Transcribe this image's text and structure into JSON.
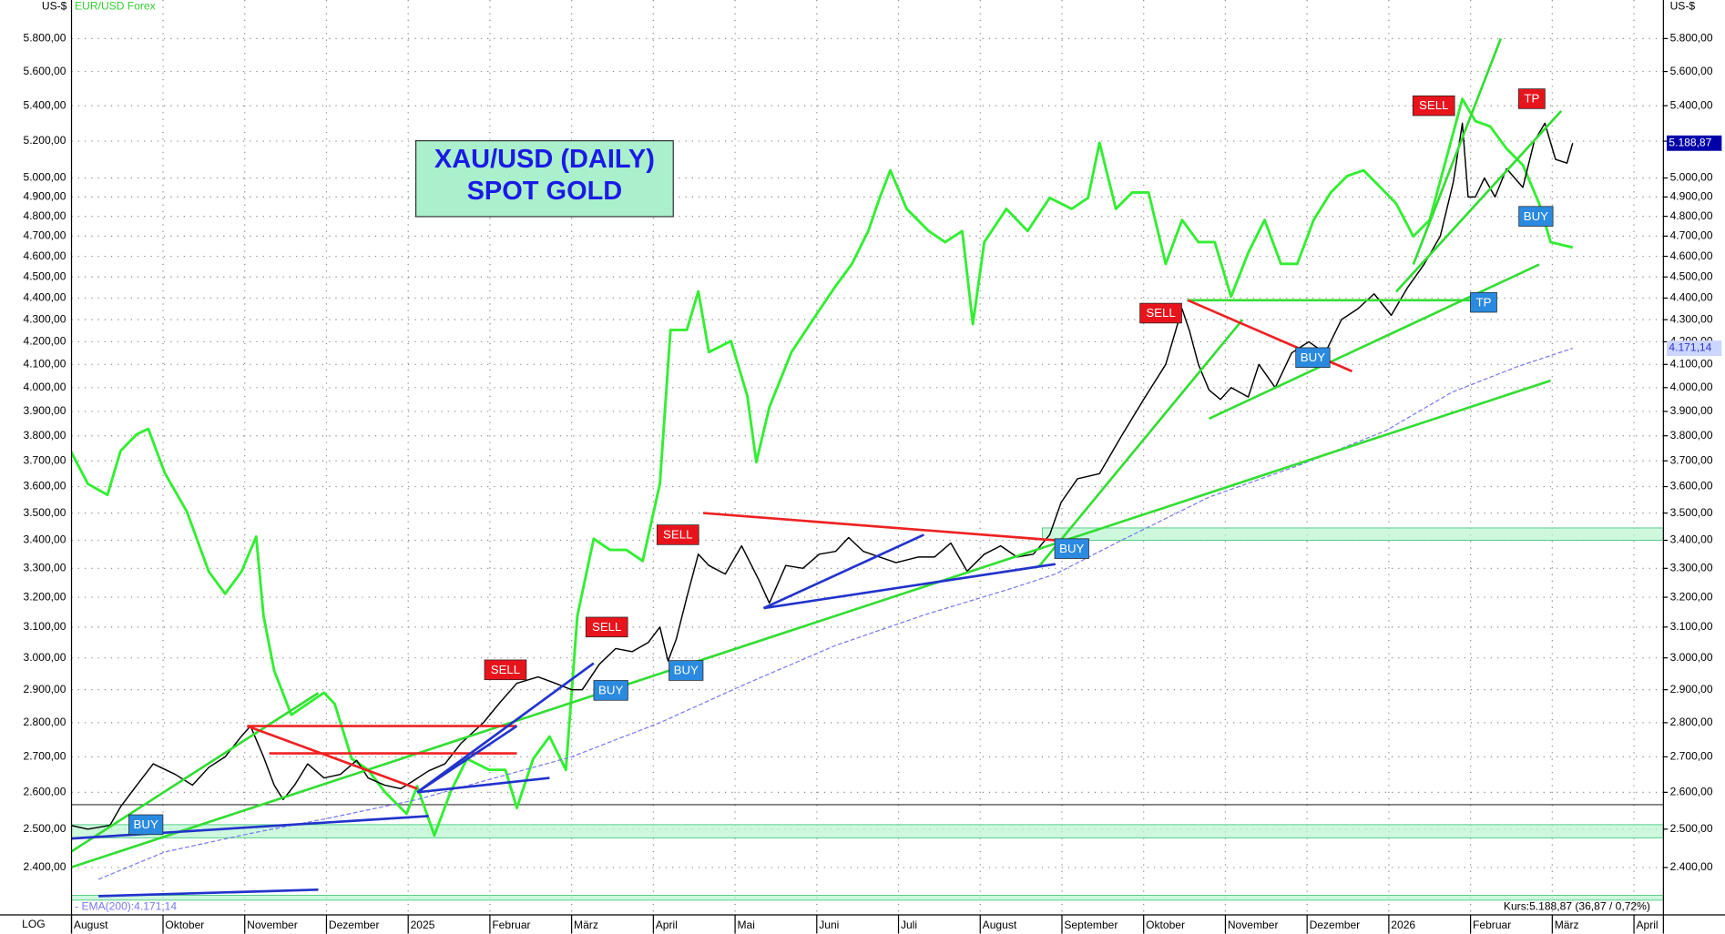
{
  "chart_data": {
    "type": "line",
    "title": "XAU/USD (DAILY)",
    "subtitle": "SPOT GOLD",
    "y_unit_left": "US-$",
    "y_unit_right": "US-$",
    "log_label": "LOG",
    "log_scale": true,
    "grid": true,
    "xlim": [
      0.88,
      20.36
    ],
    "xticks": [
      {
        "value": 0.88,
        "label": "August"
      },
      {
        "value": 2,
        "label": "Oktober"
      },
      {
        "value": 3,
        "label": "November"
      },
      {
        "value": 4,
        "label": "Dezember"
      },
      {
        "value": 5,
        "label": "2025"
      },
      {
        "value": 6,
        "label": "Februar"
      },
      {
        "value": 7,
        "label": "März"
      },
      {
        "value": 8,
        "label": "April"
      },
      {
        "value": 9,
        "label": "Mai"
      },
      {
        "value": 10,
        "label": "Juni"
      },
      {
        "value": 11,
        "label": "Juli"
      },
      {
        "value": 12,
        "label": "August"
      },
      {
        "value": 13,
        "label": "September"
      },
      {
        "value": 14,
        "label": "Oktober"
      },
      {
        "value": 15,
        "label": "November"
      },
      {
        "value": 16,
        "label": "Dezember"
      },
      {
        "value": 17,
        "label": "2026"
      },
      {
        "value": 18,
        "label": "Februar"
      },
      {
        "value": 19,
        "label": "März"
      },
      {
        "value": 20,
        "label": "April"
      }
    ],
    "ylim": [
      2282,
      6043
    ],
    "yticks": [
      {
        "value": 2400,
        "label": "2.400,00"
      },
      {
        "value": 2500,
        "label": "2.500,00"
      },
      {
        "value": 2600,
        "label": "2.600,00"
      },
      {
        "value": 2700,
        "label": "2.700,00"
      },
      {
        "value": 2800,
        "label": "2.800,00"
      },
      {
        "value": 2900,
        "label": "2.900,00"
      },
      {
        "value": 3000,
        "label": "3.000,00"
      },
      {
        "value": 3100,
        "label": "3.100,00"
      },
      {
        "value": 3200,
        "label": "3.200,00"
      },
      {
        "value": 3300,
        "label": "3.300,00"
      },
      {
        "value": 3400,
        "label": "3.400,00"
      },
      {
        "value": 3500,
        "label": "3.500,00"
      },
      {
        "value": 3600,
        "label": "3.600,00"
      },
      {
        "value": 3700,
        "label": "3.700,00"
      },
      {
        "value": 3800,
        "label": "3.800,00"
      },
      {
        "value": 3900,
        "label": "3.900,00"
      },
      {
        "value": 4000,
        "label": "4.000,00"
      },
      {
        "value": 4100,
        "label": "4.100,00"
      },
      {
        "value": 4200,
        "label": "4.200,00"
      },
      {
        "value": 4300,
        "label": "4.300,00"
      },
      {
        "value": 4400,
        "label": "4.400,00"
      },
      {
        "value": 4500,
        "label": "4.500,00"
      },
      {
        "value": 4600,
        "label": "4.600,00"
      },
      {
        "value": 4700,
        "label": "4.700,00"
      },
      {
        "value": 4800,
        "label": "4.800,00"
      },
      {
        "value": 4900,
        "label": "4.900,00"
      },
      {
        "value": 5000,
        "label": "5.000,00"
      },
      {
        "value": 5200,
        "label": "5.200,00"
      },
      {
        "value": 5400,
        "label": "5.400,00"
      },
      {
        "value": 5600,
        "label": "5.600,00"
      },
      {
        "value": 5800,
        "label": "5.800,00"
      }
    ],
    "y2lim": [
      1.0121,
      1.2184
    ],
    "series": [
      {
        "color": "#000000",
        "x": [
          0.87,
          1.08,
          1.35,
          1.48,
          1.68,
          1.88,
          2.15,
          2.36,
          2.56,
          2.76,
          2.96,
          3.07,
          3.23,
          3.36,
          3.47,
          3.61,
          3.77,
          3.97,
          4.17,
          4.37,
          4.51,
          4.71,
          4.91,
          5.05,
          5.25,
          5.45,
          5.65,
          5.92,
          6.12,
          6.33,
          6.59,
          6.8,
          7.0,
          7.13,
          7.34,
          7.54,
          7.74,
          7.94,
          8.08,
          8.18,
          8.28,
          8.41,
          8.55,
          8.68,
          8.88,
          9.08,
          9.29,
          9.42,
          9.62,
          9.83,
          10.03,
          10.23,
          10.39,
          10.57,
          10.77,
          10.97,
          11.24,
          11.44,
          11.64,
          11.84,
          12.05,
          12.25,
          12.45,
          12.65,
          12.85,
          12.99,
          13.19,
          13.46,
          13.73,
          14.0,
          14.27,
          14.47,
          14.56,
          14.67,
          14.8,
          14.94,
          15.07,
          15.28,
          15.41,
          15.61,
          15.81,
          16.02,
          16.22,
          16.42,
          16.62,
          16.82,
          17.03,
          17.23,
          17.43,
          17.63,
          17.79,
          17.9,
          17.97,
          18.06,
          18.17,
          18.3,
          18.44,
          18.64,
          18.78,
          18.91,
          19.04,
          19.18,
          19.25
        ],
        "values": [
          2510,
          2500,
          2510,
          2560,
          2620,
          2680,
          2650,
          2620,
          2670,
          2700,
          2760,
          2790,
          2700,
          2620,
          2580,
          2620,
          2680,
          2640,
          2650,
          2690,
          2640,
          2620,
          2610,
          2630,
          2660,
          2680,
          2740,
          2800,
          2860,
          2920,
          2940,
          2920,
          2900,
          2900,
          2980,
          3030,
          3020,
          3050,
          3100,
          2990,
          3060,
          3200,
          3350,
          3310,
          3280,
          3380,
          3260,
          3180,
          3310,
          3300,
          3350,
          3360,
          3410,
          3360,
          3340,
          3320,
          3340,
          3340,
          3390,
          3290,
          3350,
          3380,
          3340,
          3350,
          3420,
          3540,
          3630,
          3650,
          3800,
          3950,
          4100,
          4350,
          4250,
          4100,
          3990,
          3950,
          4000,
          3960,
          4100,
          4000,
          4150,
          4200,
          4150,
          4300,
          4350,
          4420,
          4320,
          4450,
          4560,
          4700,
          4980,
          5300,
          4900,
          4900,
          5000,
          4900,
          5050,
          4950,
          5200,
          5300,
          5100,
          5080,
          5188.87
        ]
      },
      {
        "name": "EUR/USD Forex",
        "color": "#33ee33",
        "axis": "y2",
        "x": [
          0.87,
          1.08,
          1.32,
          1.48,
          1.68,
          1.82,
          2.02,
          2.29,
          2.56,
          2.76,
          2.96,
          3.14,
          3.23,
          3.36,
          3.57,
          3.77,
          3.97,
          4.1,
          4.31,
          4.51,
          4.71,
          4.98,
          5.11,
          5.32,
          5.52,
          5.72,
          5.99,
          6.19,
          6.33,
          6.53,
          6.73,
          6.93,
          7.07,
          7.27,
          7.47,
          7.67,
          7.87,
          8.08,
          8.21,
          8.41,
          8.55,
          8.68,
          8.95,
          9.15,
          9.26,
          9.42,
          9.69,
          9.96,
          10.23,
          10.43,
          10.63,
          10.77,
          10.9,
          11.1,
          11.37,
          11.57,
          11.78,
          11.91,
          12.05,
          12.32,
          12.58,
          12.85,
          13.12,
          13.32,
          13.46,
          13.66,
          13.86,
          14.06,
          14.27,
          14.47,
          14.67,
          14.87,
          15.07,
          15.28,
          15.48,
          15.68,
          15.88,
          16.08,
          16.29,
          16.49,
          16.69,
          16.89,
          17.09,
          17.3,
          17.5,
          17.7,
          17.9,
          18.06,
          18.24,
          18.44,
          18.64,
          18.84,
          18.98,
          19.25
        ],
        "values": [
          1.1167,
          1.1093,
          1.1068,
          1.1167,
          1.1205,
          1.1217,
          1.1118,
          1.1031,
          1.0895,
          1.0845,
          1.0895,
          1.0974,
          1.0795,
          1.0672,
          1.0572,
          1.0597,
          1.0622,
          1.0597,
          1.0473,
          1.0448,
          1.0399,
          1.0349,
          1.0411,
          1.03,
          1.0399,
          1.0473,
          1.0448,
          1.0448,
          1.0362,
          1.0473,
          1.0523,
          1.0448,
          1.0795,
          1.0969,
          1.0944,
          1.0944,
          1.0919,
          1.1093,
          1.144,
          1.144,
          1.1527,
          1.139,
          1.1415,
          1.1291,
          1.1142,
          1.1266,
          1.139,
          1.1465,
          1.1539,
          1.1589,
          1.1663,
          1.1738,
          1.18,
          1.1713,
          1.1663,
          1.1638,
          1.1663,
          1.1453,
          1.1638,
          1.1713,
          1.1663,
          1.1738,
          1.1713,
          1.1738,
          1.1862,
          1.1713,
          1.175,
          1.175,
          1.1589,
          1.1688,
          1.1638,
          1.1638,
          1.1515,
          1.1614,
          1.1688,
          1.1589,
          1.1589,
          1.1688,
          1.175,
          1.1787,
          1.18,
          1.1763,
          1.1725,
          1.1651,
          1.1688,
          1.1824,
          1.1961,
          1.1911,
          1.1899,
          1.1849,
          1.1812,
          1.1725,
          1.1638,
          1.1626
        ]
      },
      {
        "name": "- EMA(200):4.171,14",
        "color": "#7777ee",
        "dashed": true,
        "x": [
          1.21,
          2.02,
          3.1,
          4.04,
          5.11,
          6.06,
          7.0,
          8.08,
          9.15,
          10.23,
          11.31,
          12.38,
          12.92,
          13.73,
          14.8,
          15.88,
          16.96,
          17.77,
          18.57,
          19.25
        ],
        "values": [
          2370,
          2440,
          2490,
          2530,
          2580,
          2640,
          2700,
          2800,
          2920,
          3040,
          3140,
          3230,
          3280,
          3400,
          3560,
          3680,
          3820,
          3980,
          4090,
          4171.14
        ]
      }
    ],
    "price_tags": [
      {
        "value": 5188.87,
        "label": "5.188,87",
        "color": "#0000aa",
        "text_color": "#ffffff"
      },
      {
        "value": 4171.14,
        "label": "4.171,14",
        "color": "#ccd6ff",
        "text_color": "#3333cc"
      }
    ],
    "quote": "Kurs:5.188,87 (36,87 / 0,72%)",
    "zones": [
      {
        "x": [
          12.76,
          20.36
        ],
        "y": [
          3400,
          3445
        ]
      },
      {
        "x": [
          0.88,
          20.36
        ],
        "y": [
          2477,
          2512
        ]
      },
      {
        "x": [
          0.88,
          20.36
        ],
        "y": [
          2318,
          2330
        ]
      }
    ],
    "hlines": [
      {
        "value": 2566,
        "color": "#333333"
      }
    ],
    "trendlines": [
      {
        "color": "#33dd33",
        "x": [
          0.87,
          18.98
        ],
        "y": [
          2400,
          4030
        ]
      },
      {
        "color": "#33dd33",
        "x": [
          0.87,
          3.9
        ],
        "y": [
          2440,
          2890
        ]
      },
      {
        "color": "#33dd33",
        "x": [
          12.72,
          15.21
        ],
        "y": [
          3307,
          4300
        ]
      },
      {
        "color": "#33dd33",
        "x": [
          14.8,
          18.84
        ],
        "y": [
          3870,
          4560
        ]
      },
      {
        "color": "#33dd33",
        "x": [
          14.53,
          18.3
        ],
        "y": [
          4390,
          4390
        ]
      },
      {
        "color": "#33dd33",
        "x": [
          17.3,
          18.37
        ],
        "y": [
          4560,
          5800
        ]
      },
      {
        "color": "#33dd33",
        "x": [
          17.09,
          19.11
        ],
        "y": [
          4430,
          5370
        ]
      },
      {
        "color": "#ee2222",
        "x": [
          8.61,
          12.92
        ],
        "y": [
          3500,
          3400
        ]
      },
      {
        "color": "#ee2222",
        "x": [
          14.54,
          16.55
        ],
        "y": [
          4390,
          4070
        ]
      },
      {
        "color": "#ee2222",
        "x": [
          3.03,
          5.11
        ],
        "y": [
          2790,
          2610
        ]
      },
      {
        "color": "#ee2222",
        "x": [
          3.03,
          6.33
        ],
        "y": [
          2790,
          2790
        ]
      },
      {
        "color": "#ee2222",
        "x": [
          3.3,
          6.33
        ],
        "y": [
          2710,
          2710
        ]
      },
      {
        "color": "#2233cc",
        "x": [
          9.35,
          11.31
        ],
        "y": [
          3163,
          3420
        ]
      },
      {
        "color": "#2233cc",
        "x": [
          9.35,
          12.92
        ],
        "y": [
          3163,
          3315
        ]
      },
      {
        "color": "#2233cc",
        "x": [
          5.11,
          7.27
        ],
        "y": [
          2600,
          2983
        ]
      },
      {
        "color": "#2233cc",
        "x": [
          5.11,
          6.73
        ],
        "y": [
          2600,
          2640
        ]
      },
      {
        "color": "#2233cc",
        "x": [
          5.11,
          6.33
        ],
        "y": [
          2600,
          2790
        ]
      },
      {
        "color": "#2233cc",
        "x": [
          0.87,
          5.25
        ],
        "y": [
          2475,
          2535
        ]
      },
      {
        "color": "#2233cc",
        "x": [
          1.21,
          3.9
        ],
        "y": [
          2328,
          2344
        ]
      }
    ],
    "signals": [
      {
        "text": "BUY",
        "x": 1.79,
        "y": 2512,
        "color": "#2a8ae0"
      },
      {
        "text": "SELL",
        "x": 6.19,
        "y": 2962,
        "color": "#e8141c"
      },
      {
        "text": "SELL",
        "x": 7.43,
        "y": 3100,
        "color": "#e8141c"
      },
      {
        "text": "BUY",
        "x": 7.48,
        "y": 2898,
        "color": "#2a8ae0"
      },
      {
        "text": "BUY",
        "x": 8.4,
        "y": 2960,
        "color": "#2a8ae0"
      },
      {
        "text": "SELL",
        "x": 8.3,
        "y": 3420,
        "color": "#e8141c"
      },
      {
        "text": "BUY",
        "x": 13.12,
        "y": 3370,
        "color": "#2a8ae0"
      },
      {
        "text": "SELL",
        "x": 14.21,
        "y": 4330,
        "color": "#e8141c"
      },
      {
        "text": "BUY",
        "x": 16.07,
        "y": 4130,
        "color": "#2a8ae0"
      },
      {
        "text": "SELL",
        "x": 17.55,
        "y": 5400,
        "color": "#e8141c"
      },
      {
        "text": "TP",
        "x": 18.75,
        "y": 5440,
        "color": "#e8141c"
      },
      {
        "text": "BUY",
        "x": 18.8,
        "y": 4800,
        "color": "#2a8ae0"
      },
      {
        "text": "TP",
        "x": 18.16,
        "y": 4380,
        "color": "#2a8ae0"
      }
    ]
  }
}
